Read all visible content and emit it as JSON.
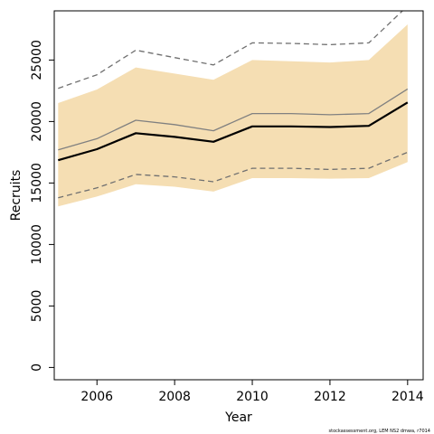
{
  "chart_data": {
    "type": "line",
    "title": "",
    "xlabel": "Year",
    "ylabel": "Recruits",
    "xlim": [
      2004.9,
      2014.4
    ],
    "ylim": [
      -1000,
      29000
    ],
    "x_ticks": [
      2006,
      2008,
      2010,
      2012,
      2014
    ],
    "y_ticks": [
      0,
      5000,
      10000,
      15000,
      20000,
      25000
    ],
    "grid": false,
    "legend": "none",
    "x": [
      2005,
      2006,
      2007,
      2008,
      2009,
      2010,
      2011,
      2012,
      2013,
      2014
    ],
    "band": {
      "color": "#f5deb3",
      "lower": [
        13100,
        13900,
        14900,
        14700,
        14300,
        15400,
        15400,
        15350,
        15400,
        16700
      ],
      "upper": [
        21500,
        22600,
        24400,
        23900,
        23400,
        25000,
        24900,
        24800,
        25000,
        27900
      ]
    },
    "series": [
      {
        "style": "dashed",
        "color": "#707070",
        "values": [
          13800,
          14600,
          15700,
          15500,
          15100,
          16200,
          16200,
          16100,
          16200,
          17500
        ]
      },
      {
        "style": "dashed",
        "color": "#707070",
        "values": [
          22700,
          23800,
          25800,
          25200,
          24600,
          26400,
          26350,
          26250,
          26400,
          29400
        ]
      },
      {
        "style": "solid",
        "color": "#808080",
        "values": [
          17700,
          18600,
          20100,
          19750,
          19250,
          20650,
          20650,
          20550,
          20650,
          22650
        ]
      },
      {
        "style": "solid-thick",
        "color": "#000000",
        "values": [
          16850,
          17750,
          19050,
          18750,
          18350,
          19600,
          19600,
          19550,
          19650,
          21550
        ]
      }
    ]
  },
  "footnote": "stockassessment.org, LEM NS2 dmwa, r7014"
}
